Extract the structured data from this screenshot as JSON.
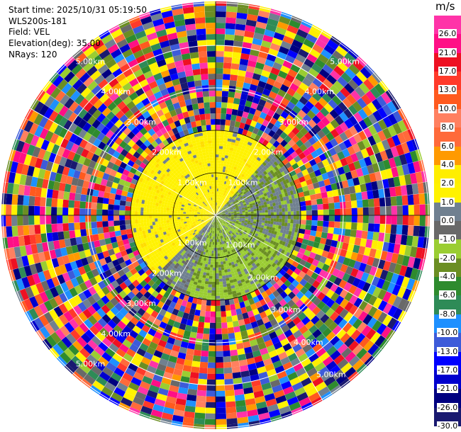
{
  "header": {
    "start_time": "Start time: 2025/10/31 05:19:50",
    "station": "WLS200s-181",
    "field": "Field: VEL",
    "elevation": "Elevation(deg): 35.00",
    "nrays": "NRays: 120"
  },
  "colorbar": {
    "unit": "m/s",
    "levels": [
      {
        "label": "26.0",
        "color": "#ff33a8"
      },
      {
        "label": "21.0",
        "color": "#ff0f86"
      },
      {
        "label": "17.0",
        "color": "#ee1122"
      },
      {
        "label": "13.0",
        "color": "#ff3a2a"
      },
      {
        "label": "10.0",
        "color": "#ff5a1e"
      },
      {
        "label": "8.0",
        "color": "#ff8060"
      },
      {
        "label": "6.0",
        "color": "#ff6a3a"
      },
      {
        "label": "4.0",
        "color": "#ff9a00"
      },
      {
        "label": "2.0",
        "color": "#ffee00"
      },
      {
        "label": "1.0",
        "color": "#fff200"
      },
      {
        "label": "0.0",
        "color": "#708090"
      },
      {
        "label": "-1.0",
        "color": "#696969"
      },
      {
        "label": "-2.0",
        "color": "#9acd32"
      },
      {
        "label": "-4.0",
        "color": "#6b8e23"
      },
      {
        "label": "-6.0",
        "color": "#2e8b2e"
      },
      {
        "label": "-8.0",
        "color": "#2e8b57"
      },
      {
        "label": "-10.0",
        "color": "#1e90ff"
      },
      {
        "label": "-13.0",
        "color": "#3d5bd9"
      },
      {
        "label": "-17.0",
        "color": "#0000ff"
      },
      {
        "label": "-21.0",
        "color": "#0000cd"
      },
      {
        "label": "-26.0",
        "color": "#000080"
      },
      {
        "label": "-30.0",
        "color": "#191970"
      }
    ]
  },
  "range_labels": {
    "r1": "1.00km",
    "r2": "2.00km",
    "r3": "3.00km",
    "r4": "4.00km",
    "r5": "5.00km"
  }
}
